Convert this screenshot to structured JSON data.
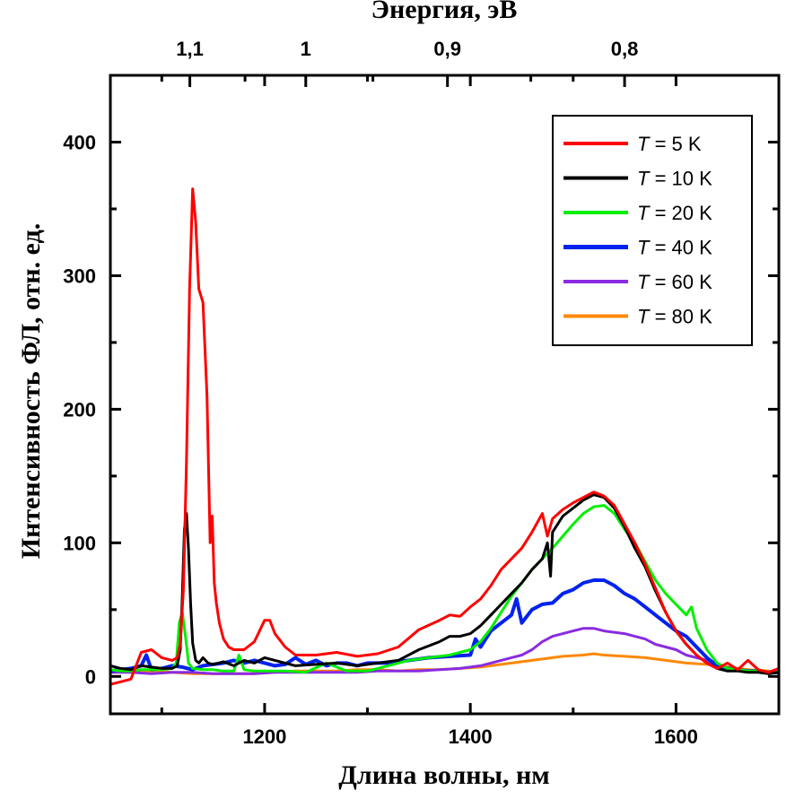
{
  "chart_data": {
    "type": "line",
    "xlabel": "Длина волны, нм",
    "ylabel": "Интенсивность ФЛ, отн. ед.",
    "top_xlabel": "Энергия, эВ",
    "xlim": [
      1050,
      1700
    ],
    "ylim": [
      -28,
      450
    ],
    "x_ticks": [
      1200,
      1400,
      1600
    ],
    "y_ticks": [
      0,
      100,
      200,
      300,
      400
    ],
    "top_ticks": [
      {
        "label": "1,1",
        "energy": 1.1
      },
      {
        "label": "1",
        "energy": 1.0
      },
      {
        "label": "0,9",
        "energy": 0.9
      },
      {
        "label": "0,8",
        "energy": 0.8
      }
    ],
    "grid": false,
    "legend_position": "top-right",
    "series": [
      {
        "name": "5 K",
        "prefix": "T",
        "color": "#ff0000",
        "width": 3,
        "x": [
          1050,
          1060,
          1070,
          1080,
          1090,
          1100,
          1110,
          1115,
          1118,
          1121,
          1124,
          1127,
          1130,
          1133,
          1136,
          1140,
          1144,
          1147,
          1149,
          1151,
          1153,
          1156,
          1160,
          1165,
          1170,
          1180,
          1190,
          1200,
          1205,
          1210,
          1220,
          1230,
          1250,
          1270,
          1290,
          1310,
          1330,
          1350,
          1370,
          1380,
          1390,
          1400,
          1410,
          1420,
          1430,
          1440,
          1450,
          1460,
          1470,
          1475,
          1480,
          1490,
          1500,
          1510,
          1520,
          1530,
          1540,
          1550,
          1560,
          1570,
          1580,
          1590,
          1600,
          1610,
          1620,
          1630,
          1640,
          1650,
          1660,
          1670,
          1680,
          1690,
          1700
        ],
        "y": [
          -6,
          -4,
          -2,
          18,
          20,
          14,
          12,
          14,
          24,
          65,
          160,
          290,
          365,
          340,
          290,
          280,
          210,
          100,
          120,
          70,
          55,
          40,
          28,
          22,
          20,
          20,
          26,
          42,
          42,
          32,
          22,
          16,
          16,
          18,
          15,
          17,
          22,
          35,
          42,
          46,
          45,
          52,
          58,
          68,
          80,
          88,
          96,
          108,
          122,
          105,
          118,
          125,
          130,
          134,
          138,
          135,
          128,
          114,
          100,
          84,
          66,
          48,
          34,
          24,
          16,
          10,
          6,
          10,
          5,
          12,
          5,
          3,
          6
        ]
      },
      {
        "name": "10 K",
        "prefix": "T",
        "color": "#000000",
        "width": 3,
        "x": [
          1050,
          1060,
          1070,
          1080,
          1090,
          1100,
          1110,
          1115,
          1118,
          1120,
          1122,
          1124,
          1126,
          1128,
          1130,
          1133,
          1136,
          1140,
          1145,
          1150,
          1160,
          1170,
          1180,
          1190,
          1200,
          1210,
          1220,
          1230,
          1250,
          1270,
          1290,
          1310,
          1330,
          1350,
          1370,
          1380,
          1390,
          1400,
          1410,
          1420,
          1430,
          1440,
          1450,
          1460,
          1470,
          1475,
          1478,
          1480,
          1490,
          1500,
          1510,
          1520,
          1530,
          1540,
          1550,
          1560,
          1570,
          1580,
          1590,
          1600,
          1610,
          1620,
          1630,
          1640,
          1650,
          1660,
          1670,
          1680,
          1690,
          1700
        ],
        "y": [
          8,
          6,
          5,
          8,
          7,
          6,
          6,
          8,
          20,
          60,
          110,
          122,
          95,
          55,
          25,
          12,
          10,
          14,
          10,
          9,
          11,
          8,
          12,
          10,
          14,
          12,
          10,
          8,
          9,
          10,
          8,
          10,
          12,
          20,
          26,
          30,
          30,
          32,
          38,
          46,
          54,
          62,
          70,
          80,
          88,
          100,
          75,
          108,
          120,
          126,
          132,
          136,
          134,
          126,
          112,
          96,
          82,
          64,
          48,
          34,
          24,
          16,
          10,
          6,
          4,
          4,
          3,
          3,
          2,
          3
        ]
      },
      {
        "name": "20 K",
        "prefix": "T",
        "color": "#00ee00",
        "width": 3,
        "x": [
          1050,
          1060,
          1070,
          1080,
          1090,
          1100,
          1110,
          1114,
          1117,
          1120,
          1123,
          1126,
          1130,
          1140,
          1150,
          1160,
          1170,
          1175,
          1180,
          1190,
          1200,
          1210,
          1220,
          1240,
          1260,
          1280,
          1300,
          1320,
          1340,
          1360,
          1380,
          1400,
          1410,
          1420,
          1430,
          1440,
          1450,
          1460,
          1470,
          1480,
          1490,
          1500,
          1510,
          1520,
          1530,
          1540,
          1550,
          1560,
          1570,
          1580,
          1590,
          1600,
          1605,
          1610,
          1615,
          1620,
          1630,
          1640,
          1650,
          1660,
          1670,
          1680,
          1690,
          1700
        ],
        "y": [
          5,
          4,
          4,
          5,
          5,
          5,
          6,
          10,
          40,
          48,
          30,
          10,
          6,
          5,
          5,
          4,
          4,
          16,
          5,
          4,
          4,
          4,
          4,
          3,
          10,
          4,
          4,
          8,
          12,
          14,
          16,
          20,
          26,
          36,
          48,
          60,
          70,
          80,
          88,
          96,
          105,
          114,
          122,
          127,
          128,
          122,
          110,
          100,
          86,
          72,
          62,
          54,
          50,
          46,
          52,
          36,
          20,
          10,
          6,
          5,
          4,
          4,
          3,
          3
        ]
      },
      {
        "name": "40 K",
        "prefix": "T",
        "color": "#0022ee",
        "width": 4,
        "x": [
          1050,
          1060,
          1070,
          1080,
          1085,
          1090,
          1100,
          1110,
          1120,
          1130,
          1140,
          1150,
          1160,
          1170,
          1180,
          1190,
          1200,
          1210,
          1220,
          1230,
          1240,
          1250,
          1260,
          1270,
          1280,
          1290,
          1300,
          1320,
          1340,
          1360,
          1380,
          1400,
          1405,
          1410,
          1420,
          1430,
          1440,
          1445,
          1450,
          1460,
          1470,
          1480,
          1490,
          1500,
          1510,
          1520,
          1530,
          1540,
          1550,
          1560,
          1570,
          1580,
          1590,
          1600,
          1610,
          1620,
          1630,
          1640,
          1650,
          1660,
          1670,
          1680,
          1690,
          1700
        ],
        "y": [
          4,
          5,
          6,
          8,
          16,
          5,
          6,
          8,
          7,
          5,
          8,
          9,
          10,
          12,
          10,
          12,
          10,
          8,
          9,
          14,
          9,
          12,
          8,
          10,
          10,
          8,
          10,
          10,
          12,
          14,
          15,
          16,
          28,
          22,
          34,
          40,
          46,
          58,
          40,
          50,
          54,
          55,
          62,
          65,
          70,
          72,
          72,
          68,
          62,
          58,
          52,
          46,
          40,
          34,
          30,
          22,
          14,
          8,
          6,
          5,
          4,
          4,
          3,
          3
        ]
      },
      {
        "name": "60 K",
        "prefix": "T",
        "color": "#8a2be2",
        "width": 3,
        "x": [
          1050,
          1070,
          1090,
          1110,
          1130,
          1150,
          1170,
          1190,
          1210,
          1230,
          1250,
          1270,
          1290,
          1310,
          1330,
          1350,
          1370,
          1390,
          1410,
          1430,
          1440,
          1450,
          1460,
          1470,
          1480,
          1490,
          1500,
          1510,
          1520,
          1530,
          1540,
          1550,
          1560,
          1570,
          1580,
          1590,
          1600,
          1610,
          1620,
          1630,
          1640,
          1650,
          1670,
          1690,
          1700
        ],
        "y": [
          3,
          3,
          2,
          3,
          3,
          2,
          2,
          2,
          3,
          3,
          3,
          3,
          3,
          4,
          4,
          4,
          5,
          6,
          8,
          12,
          14,
          16,
          20,
          26,
          30,
          32,
          34,
          36,
          36,
          34,
          33,
          32,
          30,
          28,
          24,
          22,
          20,
          16,
          14,
          12,
          8,
          6,
          4,
          3,
          3
        ]
      },
      {
        "name": "80 K",
        "prefix": "T",
        "color": "#ff8800",
        "width": 3,
        "x": [
          1050,
          1070,
          1090,
          1110,
          1130,
          1150,
          1170,
          1190,
          1210,
          1230,
          1250,
          1270,
          1290,
          1310,
          1330,
          1350,
          1370,
          1390,
          1410,
          1430,
          1450,
          1470,
          1490,
          1510,
          1520,
          1530,
          1550,
          1570,
          1590,
          1610,
          1630,
          1650,
          1670,
          1690,
          1700
        ],
        "y": [
          5,
          4,
          4,
          3,
          2,
          2,
          2,
          2,
          3,
          4,
          4,
          4,
          5,
          5,
          4,
          5,
          5,
          6,
          7,
          9,
          11,
          13,
          15,
          16,
          17,
          16,
          15,
          14,
          12,
          10,
          9,
          7,
          5,
          4,
          3
        ]
      }
    ]
  }
}
